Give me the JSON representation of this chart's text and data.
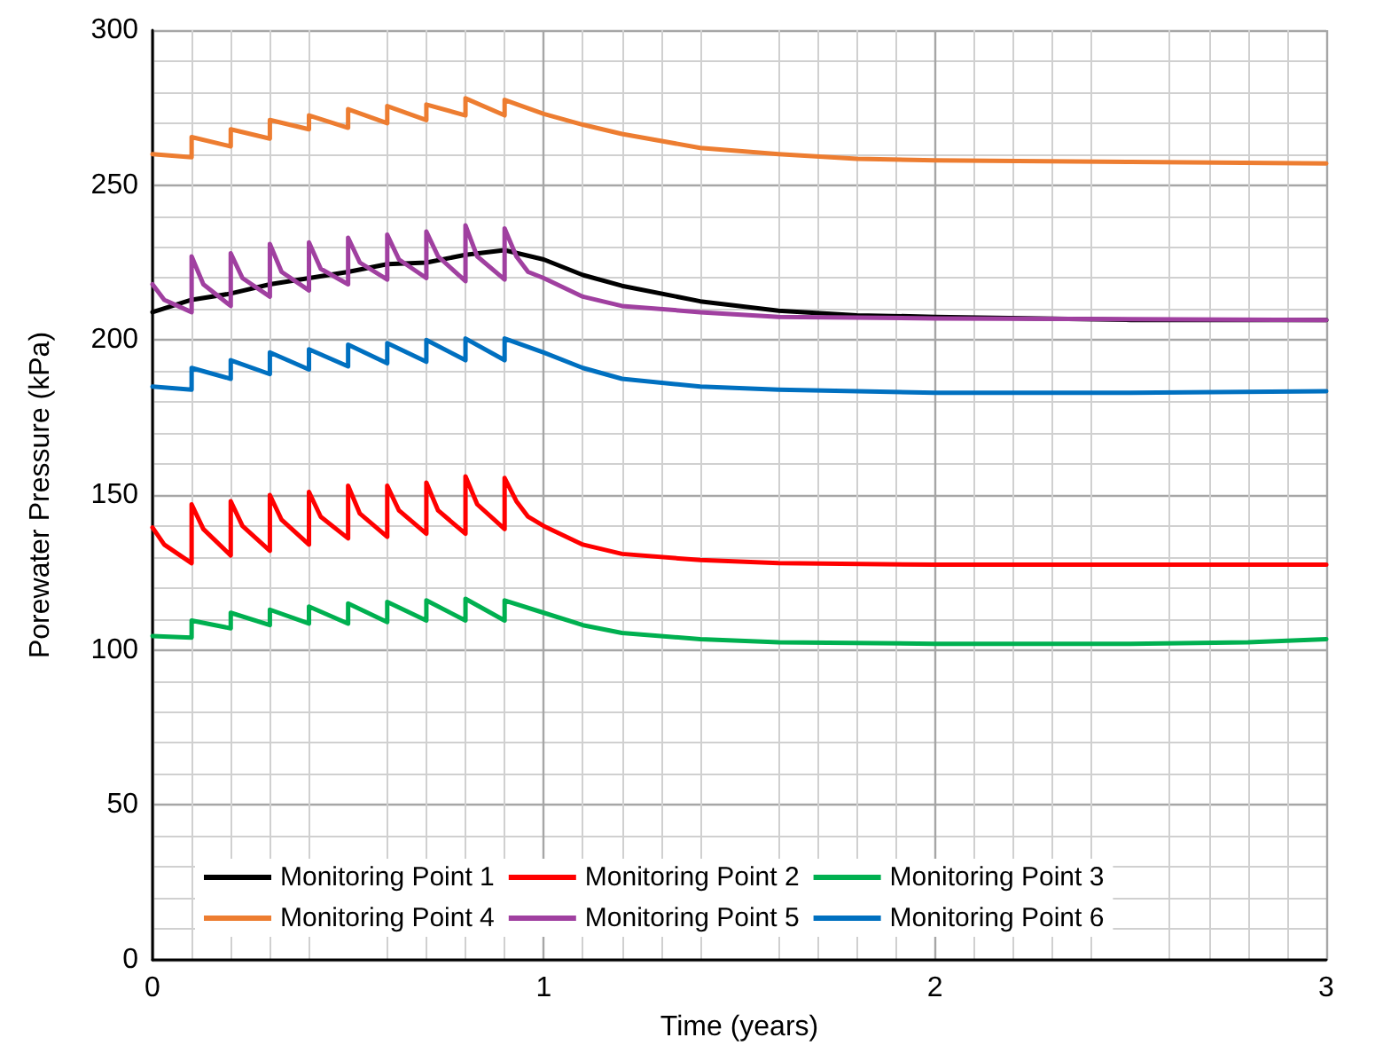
{
  "chart_data": {
    "type": "line",
    "xlabel": "Time (years)",
    "ylabel": "Porewater Pressure (kPa)",
    "xlim": [
      0,
      3
    ],
    "xticks": [
      0,
      1,
      2,
      3
    ],
    "ylim": [
      0,
      300
    ],
    "yticks": [
      0,
      50,
      100,
      150,
      200,
      250,
      300
    ],
    "grid": true,
    "legend": "bottom",
    "series": [
      {
        "name": "Monitoring Point 1",
        "color": "#000000",
        "x": [
          0,
          0.1,
          0.2,
          0.3,
          0.4,
          0.5,
          0.6,
          0.7,
          0.8,
          0.9,
          1.0,
          1.1,
          1.2,
          1.4,
          1.6,
          1.8,
          2.0,
          2.5,
          3.0
        ],
        "values": [
          209,
          213,
          215,
          218,
          220,
          222,
          224.5,
          225,
          227.5,
          229,
          226,
          221,
          217.5,
          212.5,
          209.5,
          208,
          207.5,
          206.5,
          206.5
        ]
      },
      {
        "name": "Monitoring Point 2",
        "color": "#ff0000",
        "x": [
          0,
          0.03,
          0.1,
          0.1,
          0.13,
          0.2,
          0.2,
          0.23,
          0.3,
          0.3,
          0.33,
          0.4,
          0.4,
          0.43,
          0.5,
          0.5,
          0.53,
          0.6,
          0.6,
          0.63,
          0.7,
          0.7,
          0.73,
          0.8,
          0.8,
          0.83,
          0.9,
          0.9,
          0.93,
          0.96,
          1.0,
          1.1,
          1.2,
          1.4,
          1.6,
          2.0,
          2.5,
          3.0
        ],
        "values": [
          139.5,
          134,
          128,
          147,
          139,
          130.5,
          148,
          140,
          132,
          150,
          142,
          134,
          151,
          143,
          136,
          153,
          144,
          136.5,
          153,
          145,
          137.5,
          154,
          145,
          137.5,
          156,
          147,
          139,
          155.5,
          148,
          143,
          140,
          134,
          131,
          129,
          128,
          127.5,
          127.5,
          127.5
        ]
      },
      {
        "name": "Monitoring Point 3",
        "color": "#00b050",
        "x": [
          0,
          0.1,
          0.1,
          0.2,
          0.2,
          0.3,
          0.3,
          0.4,
          0.4,
          0.5,
          0.5,
          0.6,
          0.6,
          0.7,
          0.7,
          0.8,
          0.8,
          0.9,
          0.9,
          1.0,
          1.1,
          1.2,
          1.4,
          1.6,
          2.0,
          2.5,
          2.8,
          3.0
        ],
        "values": [
          104.5,
          104,
          109.5,
          107,
          112,
          108,
          113,
          108.5,
          114,
          108.5,
          115,
          109,
          115.5,
          109.5,
          116,
          109.5,
          116.5,
          109.5,
          116,
          112,
          108,
          105.5,
          103.5,
          102.5,
          102,
          102,
          102.5,
          103.5
        ]
      },
      {
        "name": "Monitoring Point 4",
        "color": "#ed7d31",
        "x": [
          0,
          0.1,
          0.1,
          0.2,
          0.2,
          0.3,
          0.3,
          0.4,
          0.4,
          0.5,
          0.5,
          0.6,
          0.6,
          0.7,
          0.7,
          0.8,
          0.8,
          0.9,
          0.9,
          1.0,
          1.1,
          1.2,
          1.4,
          1.6,
          1.8,
          2.0,
          2.5,
          3.0
        ],
        "values": [
          260,
          259,
          265.5,
          262.5,
          268,
          265,
          271,
          268,
          272.5,
          268.5,
          274.5,
          270,
          275.5,
          271,
          276,
          272.5,
          278,
          272.5,
          277.5,
          273,
          269.5,
          266.5,
          262,
          260,
          258.5,
          258,
          257.5,
          257
        ]
      },
      {
        "name": "Monitoring Point 5",
        "color": "#a040a0",
        "x": [
          0,
          0.03,
          0.1,
          0.1,
          0.13,
          0.2,
          0.2,
          0.23,
          0.3,
          0.3,
          0.33,
          0.4,
          0.4,
          0.43,
          0.5,
          0.5,
          0.53,
          0.6,
          0.6,
          0.63,
          0.7,
          0.7,
          0.73,
          0.8,
          0.8,
          0.83,
          0.9,
          0.9,
          0.93,
          0.96,
          1.0,
          1.1,
          1.2,
          1.4,
          1.6,
          2.0,
          3.0
        ],
        "values": [
          218,
          213,
          209,
          227,
          218,
          211,
          228,
          220,
          214,
          231,
          222,
          216,
          231.5,
          223,
          218,
          233,
          225,
          219.5,
          234,
          226,
          220,
          235,
          227,
          219,
          237,
          227,
          219.5,
          236,
          227,
          222,
          220,
          214,
          211,
          209,
          207.5,
          207,
          206.5
        ]
      },
      {
        "name": "Monitoring Point 6",
        "color": "#0070c0",
        "x": [
          0,
          0.1,
          0.1,
          0.2,
          0.2,
          0.3,
          0.3,
          0.4,
          0.4,
          0.5,
          0.5,
          0.6,
          0.6,
          0.7,
          0.7,
          0.8,
          0.8,
          0.9,
          0.9,
          1.0,
          1.1,
          1.2,
          1.4,
          1.6,
          2.0,
          2.5,
          3.0
        ],
        "values": [
          185,
          184,
          191,
          187.5,
          193.5,
          189,
          196,
          190.5,
          197,
          191.5,
          198.5,
          192.5,
          199,
          193,
          200,
          193.5,
          200.5,
          193.5,
          200.5,
          196,
          191,
          187.5,
          185,
          184,
          183,
          183,
          183.5
        ]
      }
    ]
  }
}
